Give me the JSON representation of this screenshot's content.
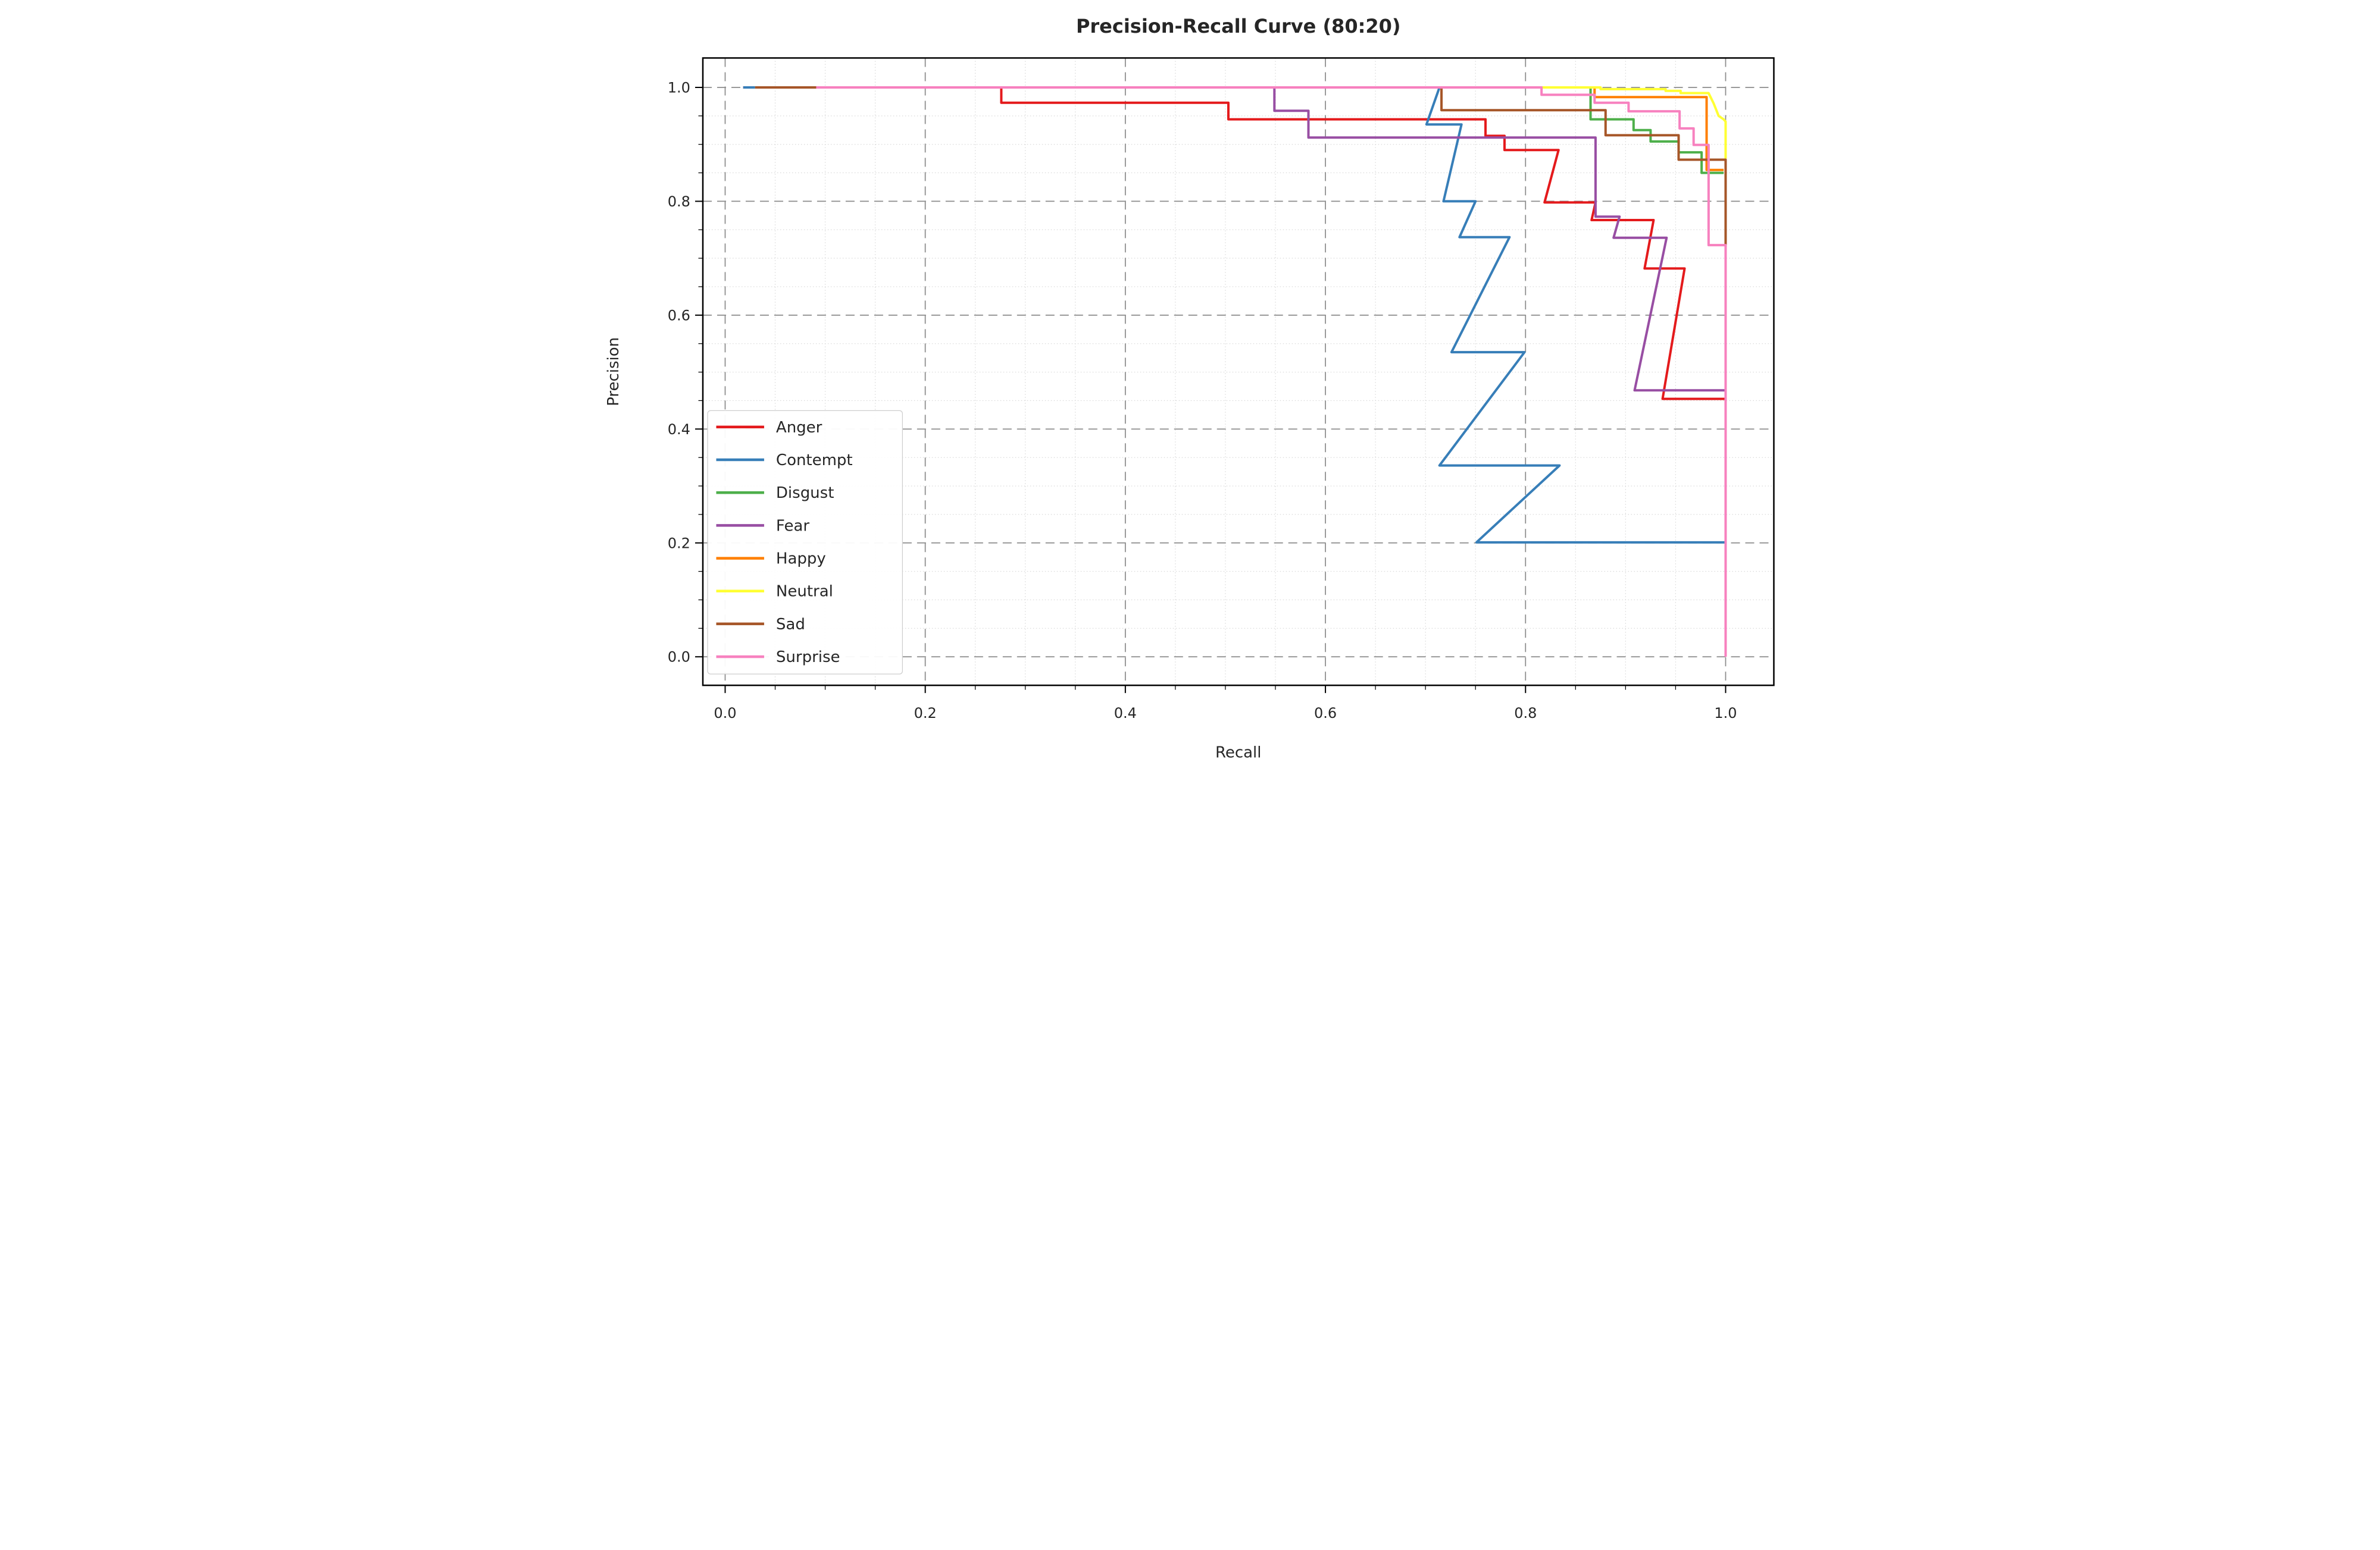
{
  "chart_data": {
    "type": "line",
    "title": "Precision-Recall Curve (80:20)",
    "xlabel": "Recall",
    "ylabel": "Precision",
    "xlim": [
      -0.0223,
      1.0482
    ],
    "ylim": [
      -0.0501,
      1.0517
    ],
    "x_ticks": [
      0.0,
      0.2,
      0.4,
      0.6,
      0.8,
      1.0
    ],
    "x_tick_labels": [
      "0.0",
      "0.2",
      "0.4",
      "0.6",
      "0.8",
      "1.0"
    ],
    "y_ticks": [
      0.0,
      0.2,
      0.4,
      0.6,
      0.8,
      1.0
    ],
    "y_tick_labels": [
      "0.0",
      "0.2",
      "0.4",
      "0.6",
      "0.8",
      "1.0"
    ],
    "minor_tick_step": 0.05,
    "grid": {
      "major": true,
      "minor": true,
      "major_style": "dashed",
      "minor_style": "dotted"
    },
    "legend_position": "lower left",
    "colors": {
      "major_grid": "#8c8c8c",
      "minor_grid": "#d9d9d9",
      "spine": "#000000",
      "text": "#262626",
      "legend_border": "#cccccc",
      "legend_bg": "#ffffff"
    },
    "series": [
      {
        "name": "Anger",
        "color": "#e41a1c",
        "points": [
          [
            0.018,
            1.0
          ],
          [
            0.276,
            1.0
          ],
          [
            0.276,
            0.973
          ],
          [
            0.503,
            0.973
          ],
          [
            0.503,
            0.944
          ],
          [
            0.76,
            0.944
          ],
          [
            0.76,
            0.915
          ],
          [
            0.779,
            0.915
          ],
          [
            0.779,
            0.89
          ],
          [
            0.833,
            0.89
          ],
          [
            0.819,
            0.798
          ],
          [
            0.87,
            0.798
          ],
          [
            0.866,
            0.767
          ],
          [
            0.928,
            0.767
          ],
          [
            0.919,
            0.682
          ],
          [
            0.959,
            0.682
          ],
          [
            0.937,
            0.453
          ],
          [
            1.0,
            0.453
          ]
        ]
      },
      {
        "name": "Contempt",
        "color": "#377eb8",
        "points": [
          [
            0.018,
            1.0
          ],
          [
            0.714,
            1.0
          ],
          [
            0.701,
            0.935
          ],
          [
            0.736,
            0.935
          ],
          [
            0.718,
            0.8
          ],
          [
            0.75,
            0.8
          ],
          [
            0.734,
            0.737
          ],
          [
            0.784,
            0.737
          ],
          [
            0.726,
            0.535
          ],
          [
            0.799,
            0.535
          ],
          [
            0.714,
            0.336
          ],
          [
            0.834,
            0.336
          ],
          [
            0.751,
            0.201
          ],
          [
            1.0,
            0.201
          ]
        ]
      },
      {
        "name": "Disgust",
        "color": "#4daf4a",
        "points": [
          [
            0.03,
            1.0
          ],
          [
            0.865,
            1.0
          ],
          [
            0.865,
            0.944
          ],
          [
            0.908,
            0.944
          ],
          [
            0.908,
            0.925
          ],
          [
            0.925,
            0.925
          ],
          [
            0.925,
            0.905
          ],
          [
            0.953,
            0.905
          ],
          [
            0.953,
            0.886
          ],
          [
            0.976,
            0.886
          ],
          [
            0.976,
            0.85
          ],
          [
            0.998,
            0.85
          ]
        ]
      },
      {
        "name": "Fear",
        "color": "#984ea3",
        "points": [
          [
            0.03,
            1.0
          ],
          [
            0.549,
            1.0
          ],
          [
            0.549,
            0.959
          ],
          [
            0.583,
            0.959
          ],
          [
            0.583,
            0.912
          ],
          [
            0.87,
            0.912
          ],
          [
            0.87,
            0.773
          ],
          [
            0.894,
            0.773
          ],
          [
            0.888,
            0.736
          ],
          [
            0.941,
            0.736
          ],
          [
            0.909,
            0.468
          ],
          [
            1.0,
            0.468
          ]
        ]
      },
      {
        "name": "Happy",
        "color": "#ff7f00",
        "points": [
          [
            0.03,
            1.0
          ],
          [
            0.869,
            1.0
          ],
          [
            0.869,
            0.983
          ],
          [
            0.981,
            0.983
          ],
          [
            0.981,
            0.855
          ],
          [
            0.998,
            0.855
          ]
        ]
      },
      {
        "name": "Neutral",
        "color": "#ffff33",
        "points": [
          [
            0.03,
            1.0
          ],
          [
            0.875,
            1.0
          ],
          [
            0.875,
            0.997
          ],
          [
            0.94,
            0.997
          ],
          [
            0.94,
            0.994
          ],
          [
            0.955,
            0.994
          ],
          [
            0.955,
            0.99
          ],
          [
            0.983,
            0.99
          ],
          [
            0.988,
            0.972
          ],
          [
            0.993,
            0.95
          ],
          [
            0.998,
            0.944
          ],
          [
            1.0,
            0.94
          ],
          [
            1.0,
            0.875
          ]
        ]
      },
      {
        "name": "Sad",
        "color": "#a65628",
        "points": [
          [
            0.03,
            1.0
          ],
          [
            0.716,
            1.0
          ],
          [
            0.716,
            0.96
          ],
          [
            0.88,
            0.96
          ],
          [
            0.88,
            0.916
          ],
          [
            0.953,
            0.916
          ],
          [
            0.953,
            0.873
          ],
          [
            1.0,
            0.873
          ],
          [
            1.0,
            0.72
          ]
        ]
      },
      {
        "name": "Surprise",
        "color": "#f781bf",
        "points": [
          [
            0.091,
            1.0
          ],
          [
            0.816,
            1.0
          ],
          [
            0.816,
            0.987
          ],
          [
            0.869,
            0.987
          ],
          [
            0.869,
            0.973
          ],
          [
            0.903,
            0.973
          ],
          [
            0.903,
            0.958
          ],
          [
            0.954,
            0.958
          ],
          [
            0.954,
            0.928
          ],
          [
            0.968,
            0.928
          ],
          [
            0.968,
            0.899
          ],
          [
            0.983,
            0.899
          ],
          [
            0.983,
            0.723
          ],
          [
            1.0,
            0.723
          ],
          [
            1.0,
            0.0
          ]
        ]
      }
    ]
  }
}
